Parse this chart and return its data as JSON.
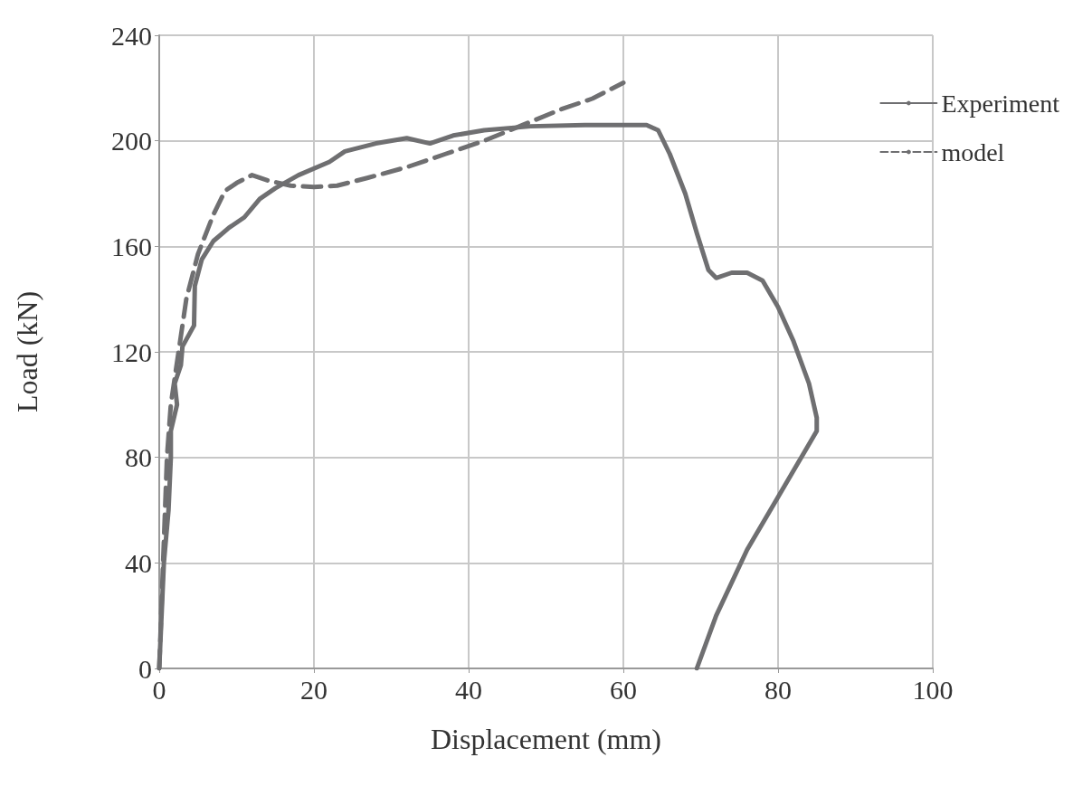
{
  "chart_data": {
    "type": "line",
    "xlabel": "Displacement (mm)",
    "ylabel": "Load (kN)",
    "xlim": [
      0,
      100
    ],
    "xticks": [
      0,
      20,
      40,
      60,
      80,
      100
    ],
    "ylim": [
      0,
      240
    ],
    "yticks": [
      0,
      40,
      80,
      120,
      160,
      200,
      240
    ],
    "grid": true,
    "legend": "top right",
    "marker": "none",
    "series": [
      {
        "name": "Experiment",
        "color": "#6f6f71",
        "line_style": "solid",
        "x": [
          0,
          0.3,
          0.6,
          1.2,
          1.5,
          1.5,
          2.3,
          2,
          2.8,
          3,
          4.5,
          4.6,
          5.5,
          7,
          9,
          11,
          13,
          15,
          18,
          22,
          24,
          28,
          32,
          35,
          38,
          42,
          48,
          55,
          60,
          63,
          64.5,
          66,
          68,
          69.5,
          71,
          72,
          74,
          76,
          78,
          80,
          82,
          84,
          85,
          85,
          83,
          80,
          76,
          72,
          69.5
        ],
        "values": [
          0,
          20,
          40,
          60,
          80,
          90,
          100,
          108,
          115,
          122,
          130,
          145,
          155,
          162,
          167,
          171,
          178,
          182,
          187,
          192,
          196,
          199,
          201,
          199,
          202,
          204,
          205.5,
          206,
          206,
          206,
          204,
          195,
          180,
          165,
          151,
          148,
          150,
          150,
          147,
          137,
          124,
          108,
          95,
          90,
          80,
          65,
          45,
          20,
          0
        ]
      },
      {
        "name": "model",
        "color": "#6f6f71",
        "line_style": "dashed",
        "x": [
          0,
          0.5,
          1,
          1.5,
          2.5,
          3.5,
          5,
          7,
          8.5,
          10,
          12,
          14,
          17,
          20,
          23,
          27,
          32,
          37,
          42,
          47,
          52,
          56,
          60
        ],
        "values": [
          0,
          40,
          80,
          100,
          120,
          140,
          157,
          172,
          181,
          184,
          187,
          185,
          183,
          182.5,
          183,
          186,
          190,
          195,
          200,
          206,
          212,
          216,
          222
        ]
      }
    ]
  }
}
